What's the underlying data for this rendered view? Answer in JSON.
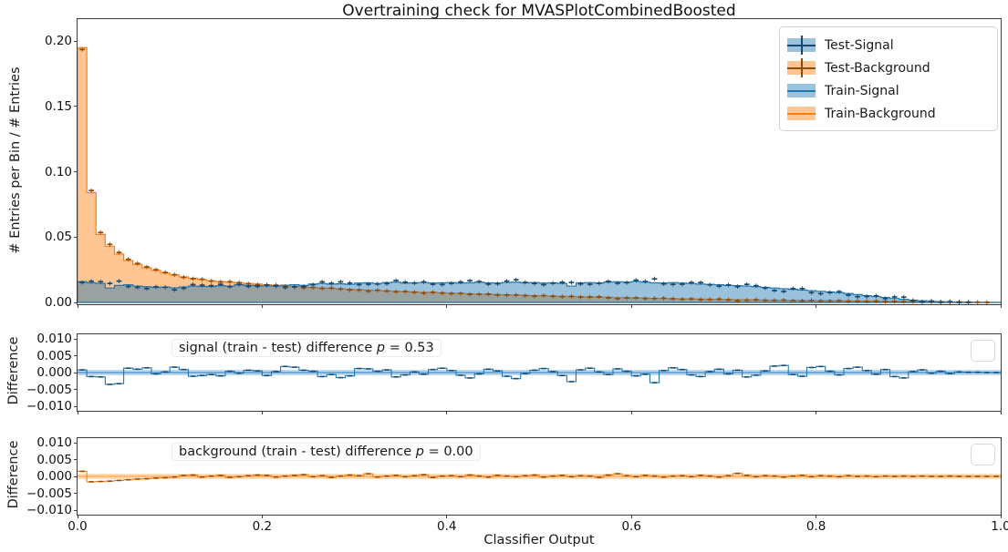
{
  "title": "Overtraining check for MVASPlotCombinedBoosted",
  "colors": {
    "signal": "#1f77b4",
    "signal_fill": "rgba(31,119,180,0.45)",
    "signal_dark": "#17486d",
    "signal_band": "#bcd7ec",
    "signal_zero": "#5b9bd0",
    "background": "#ff7f0e",
    "background_fill": "rgba(255,127,14,0.45)",
    "background_dark": "#8f4a08",
    "background_band": "#ffdcb8",
    "background_zero": "#ffab5e"
  },
  "legend": {
    "items": [
      {
        "label": "Test-Signal",
        "type": "errorbar"
      },
      {
        "label": "Test-Background",
        "type": "errorbar"
      },
      {
        "label": "Train-Signal",
        "type": "filled-line"
      },
      {
        "label": "Train-Background",
        "type": "filled-line"
      }
    ]
  },
  "main": {
    "ylabel": "# Entries per Bin / # Entries",
    "yticks": [
      "0.20",
      "0.15",
      "0.10",
      "0.05",
      "0.00"
    ]
  },
  "diff_signal": {
    "ylabel": "Difference",
    "yticks": [
      "0.010",
      "0.005",
      "0.000",
      "−0.005",
      "−0.010"
    ],
    "annotation": {
      "prefix": "signal (train - test) difference ",
      "p_symbol": "p",
      "rest": " = 0.53"
    }
  },
  "diff_background": {
    "ylabel": "Difference",
    "yticks": [
      "0.010",
      "0.005",
      "0.000",
      "−0.005",
      "−0.010"
    ],
    "annotation": {
      "prefix": "background (train - test) difference ",
      "p_symbol": "p",
      "rest": " = 0.00"
    }
  },
  "xaxis": {
    "label": "Classifier Output",
    "ticks": [
      "0.0",
      "0.2",
      "0.4",
      "0.6",
      "0.8",
      "1.0"
    ]
  },
  "chart_data": [
    {
      "type": "bar",
      "subtype": "normalized step histograms",
      "title": "Overtraining check for MVASPlotCombinedBoosted",
      "xlabel": "Classifier Output",
      "ylabel": "# Entries per Bin / # Entries",
      "xlim": [
        0.0,
        1.0
      ],
      "ylim": [
        -0.001,
        0.2165
      ],
      "bins": 100,
      "bin_width": 0.01,
      "legend_position": "upper right",
      "grid": false,
      "series": [
        {
          "name": "Train-Signal",
          "style": "filled-step",
          "values": [
            0.016,
            0.015,
            0.0145,
            0.011,
            0.013,
            0.0135,
            0.0125,
            0.012,
            0.0115,
            0.0118,
            0.0112,
            0.0118,
            0.0125,
            0.0123,
            0.0122,
            0.0128,
            0.0125,
            0.0135,
            0.013,
            0.0128,
            0.0125,
            0.0128,
            0.0132,
            0.0135,
            0.013,
            0.014,
            0.0145,
            0.014,
            0.0142,
            0.0138,
            0.0148,
            0.015,
            0.0145,
            0.0152,
            0.0155,
            0.0148,
            0.015,
            0.0152,
            0.0148,
            0.015,
            0.0152,
            0.0148,
            0.015,
            0.0155,
            0.015,
            0.0148,
            0.0152,
            0.0155,
            0.015,
            0.0152,
            0.0148,
            0.015,
            0.0145,
            0.0125,
            0.015,
            0.0152,
            0.0148,
            0.0155,
            0.0158,
            0.0155,
            0.016,
            0.0155,
            0.015,
            0.0148,
            0.0152,
            0.0148,
            0.0145,
            0.014,
            0.0138,
            0.0135,
            0.013,
            0.0128,
            0.0125,
            0.012,
            0.0115,
            0.011,
            0.0105,
            0.01,
            0.0095,
            0.009,
            0.0085,
            0.008,
            0.0075,
            0.0068,
            0.006,
            0.0052,
            0.0045,
            0.0038,
            0.003,
            0.0024,
            0.0018,
            0.0012,
            0.0008,
            0.0005,
            0.0003,
            0.0002,
            0.0001,
            0.0,
            0.0,
            0.0
          ]
        },
        {
          "name": "Train-Background",
          "style": "filled-step",
          "values": [
            0.195,
            0.084,
            0.052,
            0.043,
            0.037,
            0.032,
            0.029,
            0.0265,
            0.0245,
            0.0225,
            0.021,
            0.0195,
            0.0185,
            0.0175,
            0.0165,
            0.016,
            0.0155,
            0.015,
            0.0145,
            0.014,
            0.0135,
            0.013,
            0.0125,
            0.0122,
            0.0118,
            0.0114,
            0.011,
            0.0107,
            0.0104,
            0.01,
            0.0097,
            0.0094,
            0.0091,
            0.0088,
            0.0085,
            0.0082,
            0.008,
            0.0077,
            0.0075,
            0.0073,
            0.007,
            0.0068,
            0.0066,
            0.0064,
            0.0062,
            0.006,
            0.0058,
            0.0056,
            0.0054,
            0.0052,
            0.005,
            0.0048,
            0.0047,
            0.0045,
            0.0043,
            0.0042,
            0.004,
            0.0039,
            0.0037,
            0.0036,
            0.0034,
            0.0033,
            0.0031,
            0.003,
            0.0029,
            0.0027,
            0.0026,
            0.0025,
            0.0024,
            0.0023,
            0.0022,
            0.0021,
            0.002,
            0.0019,
            0.0018,
            0.0017,
            0.0016,
            0.0015,
            0.0015,
            0.0014,
            0.0013,
            0.0012,
            0.0012,
            0.0011,
            0.001,
            0.001,
            0.0009,
            0.0008,
            0.0008,
            0.0007,
            0.0007,
            0.0006,
            0.0005,
            0.0005,
            0.0004,
            0.0004,
            0.0003,
            0.0002,
            0.0001,
            0.0
          ]
        },
        {
          "name": "Test-Signal",
          "style": "errorbar-dash",
          "values_note": "visually coincident with Train-Signal; equals Train-Signal minus the signal difference shown in panel 2"
        },
        {
          "name": "Test-Background",
          "style": "errorbar-dash",
          "values_note": "visually coincident with Train-Background; equals Train-Background minus the background difference shown in panel 3"
        }
      ]
    },
    {
      "type": "line",
      "subtype": "step difference",
      "name": "signal (train - test) difference",
      "p_value": 0.53,
      "ylabel": "Difference",
      "ylim": [
        -0.0113,
        0.0113
      ],
      "band_halfwidth": 0.0008,
      "bins": 100,
      "bin_width": 0.01,
      "values": [
        0.0008,
        -0.0012,
        -0.0013,
        -0.0035,
        -0.0033,
        0.0013,
        0.001,
        0.0014,
        -0.0004,
        0.0002,
        0.0016,
        0.0009,
        -0.0011,
        -0.0009,
        -0.0006,
        -0.001,
        0.0004,
        -0.0002,
        0.0007,
        0.0005,
        -0.0009,
        0.0003,
        0.0018,
        0.0016,
        0.0007,
        0.0004,
        -0.0012,
        -0.0006,
        -0.0015,
        -0.001,
        0.0012,
        0.0011,
        0.0004,
        0.0008,
        -0.0013,
        -0.0007,
        0.0002,
        -0.0005,
        0.0009,
        0.0013,
        0.0006,
        -0.0008,
        -0.0016,
        -0.0004,
        0.001,
        0.0005,
        -0.0011,
        -0.0018,
        -0.0003,
        0.0007,
        0.0012,
        0.0003,
        -0.0009,
        -0.0027,
        0.0008,
        0.0013,
        0.0002,
        -0.0006,
        0.0011,
        0.0004,
        -0.001,
        -0.0005,
        -0.003,
        0.0006,
        0.0014,
        0.0009,
        -0.0007,
        -0.0012,
        0.0003,
        0.001,
        -0.0004,
        0.0007,
        -0.0013,
        -0.0008,
        0.0005,
        0.0019,
        0.0021,
        -0.0006,
        -0.0011,
        0.0015,
        0.0018,
        0.0004,
        -0.0007,
        0.0012,
        0.0016,
        0.0006,
        -0.0005,
        0.0009,
        -0.0012,
        -0.0016,
        0.0003,
        0.0008,
        -0.0002,
        0.0004,
        -0.0003,
        0.0002,
        0.0001,
        0.0001,
        0.0,
        0.0
      ]
    },
    {
      "type": "line",
      "subtype": "step difference",
      "name": "background (train - test) difference",
      "p_value": 0.0,
      "ylabel": "Difference",
      "ylim": [
        -0.0113,
        0.0113
      ],
      "band_halfwidth": 0.0008,
      "bins": 100,
      "bin_width": 0.01,
      "values": [
        0.0015,
        -0.0016,
        -0.0015,
        -0.0014,
        -0.0012,
        -0.001,
        -0.0008,
        -0.0007,
        -0.0005,
        -0.0004,
        -0.0002,
        0.0003,
        0.0004,
        -0.0002,
        0.0001,
        0.0003,
        -0.0003,
        -0.0001,
        0.0002,
        0.0004,
        0.0003,
        -0.0002,
        0.0001,
        0.0003,
        0.0005,
        -0.0001,
        0.0002,
        -0.0003,
        0.0001,
        0.0004,
        0.0002,
        0.0008,
        -0.0002,
        0.0001,
        0.0003,
        -0.0001,
        0.0002,
        0.0005,
        -0.0003,
        0.0001,
        0.0002,
        -0.0001,
        0.0004,
        0.0001,
        -0.0002,
        0.0003,
        0.0001,
        -0.0001,
        0.0002,
        0.0004,
        -0.0002,
        0.0001,
        0.0003,
        -0.0001,
        0.0002,
        0.0001,
        -0.0003,
        0.0004,
        0.0008,
        0.0002,
        -0.0001,
        0.0003,
        0.0001,
        -0.0002,
        0.0001,
        0.0002,
        -0.0001,
        0.0003,
        0.0001,
        -0.0002,
        0.0002,
        0.0009,
        0.0003,
        -0.0001,
        0.0002,
        0.0001,
        -0.0002,
        0.0001,
        0.0003,
        -0.0001,
        0.0002,
        0.0001,
        -0.0001,
        0.0002,
        0.0,
        0.0001,
        -0.0001,
        0.0001,
        0.0,
        0.0001,
        0.0,
        0.0001,
        0.0,
        0.0,
        0.0001,
        0.0,
        0.0,
        0.0,
        0.0,
        0.0
      ]
    }
  ]
}
